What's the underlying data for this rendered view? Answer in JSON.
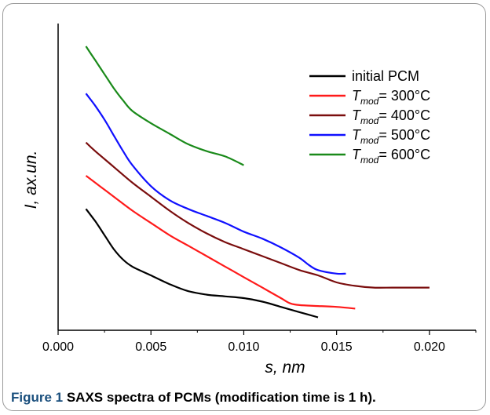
{
  "caption": {
    "label": "Figure 1",
    "text": " SAXS spectra of PCMs (modification time is 1 h)."
  },
  "chart_data": {
    "type": "line",
    "title": "",
    "xlabel": "s, nm",
    "ylabel": "I, ax.un.",
    "xlim": [
      0,
      0.0225
    ],
    "x_ticks": [
      0.0,
      0.005,
      0.01,
      0.015,
      0.02
    ],
    "x_tick_labels": [
      "0.000",
      "0.005",
      "0.010",
      "0.015",
      "0.020"
    ],
    "y_ticks": false,
    "grid": false,
    "legend_position": "top-right",
    "series": [
      {
        "name": "initial PCM",
        "legend_sub": "",
        "legend_suffix": "",
        "color": "#000000",
        "x": [
          0.0015,
          0.002,
          0.0025,
          0.003,
          0.0035,
          0.004,
          0.005,
          0.006,
          0.007,
          0.008,
          0.009,
          0.01,
          0.011,
          0.012,
          0.013,
          0.014
        ],
        "y": [
          0.64,
          0.57,
          0.49,
          0.41,
          0.35,
          0.31,
          0.26,
          0.21,
          0.17,
          0.15,
          0.14,
          0.13,
          0.11,
          0.08,
          0.05,
          0.02
        ]
      },
      {
        "name": "T",
        "legend_sub": "mod",
        "legend_suffix": "= 300°C",
        "color": "#ff1a1a",
        "x": [
          0.0015,
          0.002,
          0.003,
          0.004,
          0.005,
          0.006,
          0.007,
          0.008,
          0.009,
          0.01,
          0.011,
          0.012,
          0.0125,
          0.013,
          0.014,
          0.015,
          0.016
        ],
        "y": [
          0.83,
          0.79,
          0.71,
          0.63,
          0.56,
          0.49,
          0.43,
          0.37,
          0.31,
          0.25,
          0.19,
          0.13,
          0.1,
          0.09,
          0.085,
          0.08,
          0.07
        ]
      },
      {
        "name": "T",
        "legend_sub": "mod",
        "legend_suffix": "= 400°C",
        "color": "#7a0d0d",
        "x": [
          0.0015,
          0.002,
          0.003,
          0.004,
          0.005,
          0.006,
          0.007,
          0.008,
          0.009,
          0.01,
          0.011,
          0.012,
          0.013,
          0.014,
          0.015,
          0.016,
          0.017,
          0.018,
          0.019,
          0.02
        ],
        "y": [
          1.02,
          0.97,
          0.88,
          0.79,
          0.71,
          0.63,
          0.56,
          0.5,
          0.45,
          0.41,
          0.37,
          0.33,
          0.29,
          0.26,
          0.22,
          0.2,
          0.19,
          0.19,
          0.19,
          0.19
        ]
      },
      {
        "name": "T",
        "legend_sub": "mod",
        "legend_suffix": "= 500°C",
        "color": "#1010ff",
        "x": [
          0.0015,
          0.002,
          0.0025,
          0.003,
          0.0035,
          0.004,
          0.005,
          0.006,
          0.007,
          0.008,
          0.009,
          0.01,
          0.011,
          0.012,
          0.013,
          0.0135,
          0.014,
          0.015,
          0.0155
        ],
        "y": [
          1.3,
          1.23,
          1.15,
          1.06,
          0.97,
          0.89,
          0.77,
          0.69,
          0.64,
          0.6,
          0.56,
          0.51,
          0.47,
          0.42,
          0.36,
          0.32,
          0.29,
          0.27,
          0.27
        ]
      },
      {
        "name": "T",
        "legend_sub": "mod",
        "legend_suffix": "= 600°C",
        "color": "#1a8a1a",
        "x": [
          0.0015,
          0.002,
          0.0025,
          0.003,
          0.0035,
          0.004,
          0.005,
          0.006,
          0.007,
          0.008,
          0.009,
          0.01
        ],
        "y": [
          1.57,
          1.49,
          1.41,
          1.33,
          1.26,
          1.2,
          1.13,
          1.07,
          1.01,
          0.97,
          0.94,
          0.89
        ]
      }
    ]
  }
}
